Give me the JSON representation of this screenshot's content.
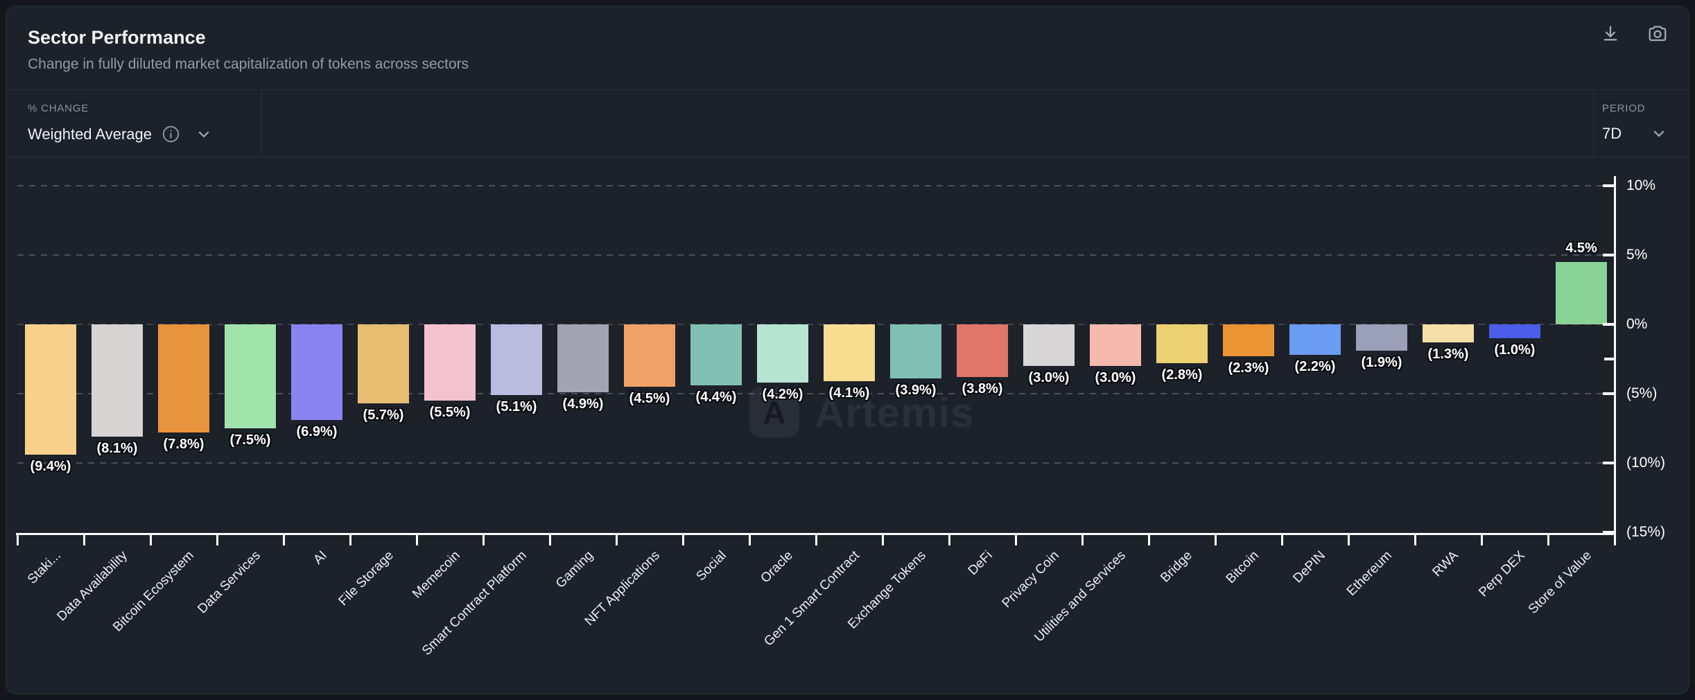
{
  "header": {
    "title": "Sector Performance",
    "subtitle": "Change in fully diluted market capitalization of tokens across sectors",
    "icons": {
      "download": "download-icon",
      "screenshot": "camera-icon"
    }
  },
  "controls": {
    "metric_label": "% CHANGE",
    "metric_value": "Weighted Average",
    "metric_icons": {
      "info": "info-icon",
      "expand": "chevron-down-icon"
    },
    "period_label": "PERIOD",
    "period_value": "7D",
    "period_icons": {
      "expand": "chevron-down-icon"
    }
  },
  "watermark": {
    "logo_glyph": "A",
    "text": "Artemis"
  },
  "chart_data": {
    "type": "bar",
    "title": "Sector Performance",
    "xlabel": "",
    "ylabel": "% Change",
    "ylim": [
      -15,
      10
    ],
    "grid": "dashed-horizontal",
    "legend_position": "none",
    "axis_position": "right",
    "categories": [
      "Staki...",
      "Data Availability",
      "Bitcoin Ecosystem",
      "Data Services",
      "AI",
      "File Storage",
      "Memecoin",
      "Smart Contract Platform",
      "Gaming",
      "NFT Applications",
      "Social",
      "Oracle",
      "Gen 1 Smart Contract",
      "Exchange Tokens",
      "DeFi",
      "Privacy Coin",
      "Utilities and Services",
      "Bridge",
      "Bitcoin",
      "DePIN",
      "Ethereum",
      "RWA",
      "Perp DEX",
      "Store of Value"
    ],
    "values": [
      -9.4,
      -8.1,
      -7.8,
      -7.5,
      -6.9,
      -5.7,
      -5.5,
      -5.1,
      -4.9,
      -4.5,
      -4.4,
      -4.2,
      -4.1,
      -3.9,
      -3.8,
      -3.0,
      -3.0,
      -2.8,
      -2.3,
      -2.2,
      -1.9,
      -1.3,
      -1.0,
      4.5
    ],
    "bar_labels": [
      "(9.4%)",
      "(8.1%)",
      "(7.8%)",
      "(7.5%)",
      "(6.9%)",
      "(5.7%)",
      "(5.5%)",
      "(5.1%)",
      "(4.9%)",
      "(4.5%)",
      "(4.4%)",
      "(4.2%)",
      "(4.1%)",
      "(3.9%)",
      "(3.8%)",
      "(3.0%)",
      "(3.0%)",
      "(2.8%)",
      "(2.3%)",
      "(2.2%)",
      "(1.9%)",
      "(1.3%)",
      "(1.0%)",
      "4.5%"
    ],
    "bar_colors": [
      "#f7d189",
      "#d6d4d3",
      "#e8943c",
      "#a0e3ab",
      "#8983f2",
      "#e7bd72",
      "#f4c2cf",
      "#b9bcdf",
      "#a3a2b3",
      "#f0a168",
      "#82c1b2",
      "#b7e4d1",
      "#f8dd90",
      "#7fc0b2",
      "#e0756a",
      "#d8d6d6",
      "#f5b9ad",
      "#ecd173",
      "#ea9434",
      "#6b9bf2",
      "#9aa0b8",
      "#f6dfa6",
      "#4a5ce8",
      "#8ad397"
    ],
    "y_tick_values": [
      10,
      5,
      0,
      -5,
      -10,
      -15
    ],
    "y_tick_labels": [
      "10%",
      "5%",
      "0%",
      "(5%)",
      "(10%)",
      "(15%)"
    ],
    "y_minor_tick_values": [
      -2.5
    ],
    "gridline_values": [
      10,
      5,
      0,
      -5,
      -10
    ]
  }
}
